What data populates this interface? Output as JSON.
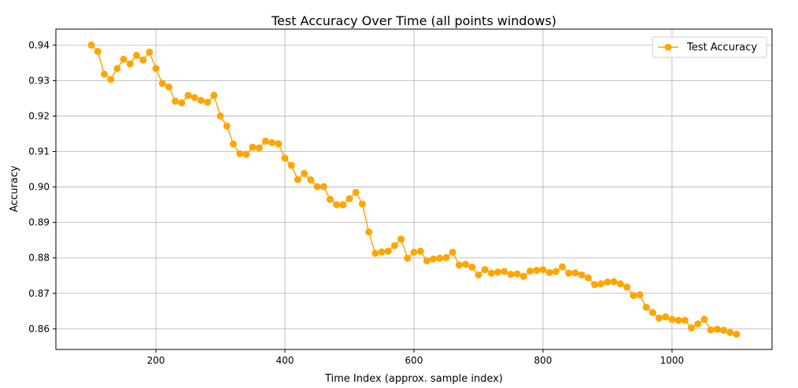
{
  "chart_data": {
    "type": "line",
    "title": "Test Accuracy Over Time (all points windows)",
    "xlabel": "Time Index (approx. sample index)",
    "ylabel": "Accuracy",
    "xlim": [
      45,
      1155
    ],
    "ylim": [
      0.8542,
      0.9445
    ],
    "xticks": [
      200,
      400,
      600,
      800,
      1000
    ],
    "yticks": [
      0.86,
      0.87,
      0.88,
      0.89,
      0.9,
      0.91,
      0.92,
      0.93,
      0.94
    ],
    "ytick_labels": [
      "0.86",
      "0.87",
      "0.88",
      "0.89",
      "0.90",
      "0.91",
      "0.92",
      "0.93",
      "0.94"
    ],
    "grid": true,
    "legend_position": "top-right",
    "series": [
      {
        "name": "Test Accuracy",
        "color": "#FFA500",
        "marker": "circle",
        "x": [
          100,
          110,
          120,
          130,
          140,
          150,
          160,
          170,
          180,
          190,
          200,
          210,
          220,
          230,
          240,
          250,
          260,
          270,
          280,
          290,
          300,
          310,
          320,
          330,
          340,
          350,
          360,
          370,
          380,
          390,
          400,
          410,
          420,
          430,
          440,
          450,
          460,
          470,
          480,
          490,
          500,
          510,
          520,
          530,
          540,
          550,
          560,
          570,
          580,
          590,
          600,
          610,
          620,
          630,
          640,
          650,
          660,
          670,
          680,
          690,
          700,
          710,
          720,
          730,
          740,
          750,
          760,
          770,
          780,
          790,
          800,
          810,
          820,
          830,
          840,
          850,
          860,
          870,
          880,
          890,
          900,
          910,
          920,
          930,
          940,
          950,
          960,
          970,
          980,
          990,
          1000,
          1010,
          1020,
          1030,
          1040,
          1050,
          1060,
          1070,
          1080,
          1090,
          1100
        ],
        "y": [
          0.94,
          0.9382,
          0.9318,
          0.9303,
          0.9334,
          0.936,
          0.9347,
          0.9371,
          0.9358,
          0.938,
          0.9334,
          0.9292,
          0.9282,
          0.9242,
          0.9237,
          0.9258,
          0.9252,
          0.9244,
          0.9239,
          0.9258,
          0.92,
          0.9172,
          0.9121,
          0.9094,
          0.9092,
          0.9112,
          0.911,
          0.9129,
          0.9125,
          0.9122,
          0.9081,
          0.9061,
          0.9021,
          0.9038,
          0.902,
          0.9001,
          0.9001,
          0.8965,
          0.895,
          0.895,
          0.8967,
          0.8985,
          0.8952,
          0.8873,
          0.8813,
          0.8817,
          0.8819,
          0.8835,
          0.8853,
          0.8799,
          0.8816,
          0.8819,
          0.8792,
          0.8797,
          0.8799,
          0.8801,
          0.8816,
          0.878,
          0.8782,
          0.8774,
          0.8752,
          0.8767,
          0.8757,
          0.876,
          0.8762,
          0.8754,
          0.8755,
          0.8748,
          0.8763,
          0.8765,
          0.8767,
          0.8759,
          0.8762,
          0.8775,
          0.8757,
          0.8758,
          0.8752,
          0.8744,
          0.8725,
          0.8727,
          0.8732,
          0.8733,
          0.8727,
          0.8718,
          0.8694,
          0.8696,
          0.8661,
          0.8646,
          0.863,
          0.8634,
          0.8627,
          0.8624,
          0.8624,
          0.8603,
          0.8614,
          0.8627,
          0.8597,
          0.8599,
          0.8596,
          0.859,
          0.8585
        ]
      }
    ]
  }
}
